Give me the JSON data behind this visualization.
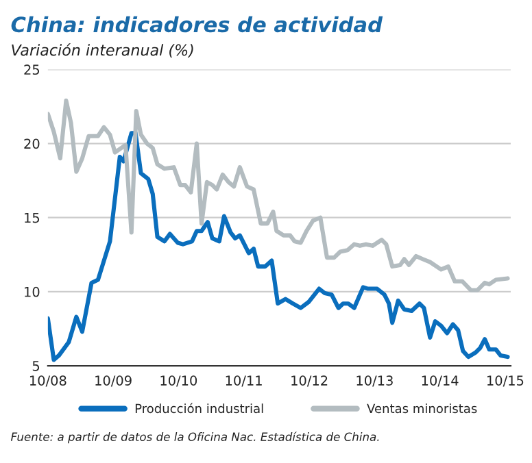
{
  "chart_data": {
    "type": "line",
    "title": "China: indicadores de actividad",
    "subtitle": "Variación interanual (%)",
    "annotations": [
      "Fuente: a partir de datos de la Oficina Nac. Estadística de China."
    ],
    "xlim": [
      "2008-10-01",
      "2015-11-01"
    ],
    "xticks": [
      {
        "value": "2008-10",
        "label": "10/08"
      },
      {
        "value": "2009-10",
        "label": "10/09"
      },
      {
        "value": "2010-10",
        "label": "10/10"
      },
      {
        "value": "2011-10",
        "label": "10/11"
      },
      {
        "value": "2012-10",
        "label": "10/12"
      },
      {
        "value": "2013-10",
        "label": "10/13"
      },
      {
        "value": "2014-10",
        "label": "10/14"
      },
      {
        "value": "2015-10",
        "label": "10/15"
      }
    ],
    "ylim": [
      5,
      25
    ],
    "yticks": [
      5,
      10,
      15,
      20,
      25
    ],
    "grid": "y",
    "legend": "bottom",
    "marker": "none",
    "line_style": "solid",
    "series": [
      {
        "name": "Producción industrial",
        "color": "#0a6ebd",
        "x": [
          "2008-10-01",
          "2008-11-03",
          "2008-12-02",
          "2009-01-26",
          "2009-03-09",
          "2009-04-11",
          "2009-06-02",
          "2009-07-08",
          "2009-09-13",
          "2009-11-07",
          "2009-11-28",
          "2010-01-11",
          "2010-02-03",
          "2010-03-05",
          "2010-04-15",
          "2010-05-10",
          "2010-06-05",
          "2010-07-15",
          "2010-08-14",
          "2010-09-27",
          "2010-10-26",
          "2010-12-16",
          "2011-01-11",
          "2011-02-07",
          "2011-03-13",
          "2011-04-08",
          "2011-05-17",
          "2011-06-13",
          "2011-07-19",
          "2011-08-14",
          "2011-09-09",
          "2011-10-04",
          "2011-10-29",
          "2011-11-25",
          "2011-12-20",
          "2012-01-29",
          "2012-03-05",
          "2012-04-08",
          "2012-05-21",
          "2012-07-01",
          "2012-08-14",
          "2012-09-27",
          "2012-11-25",
          "2012-12-27",
          "2013-02-03",
          "2013-03-13",
          "2013-04-08",
          "2013-05-07",
          "2013-06-09",
          "2013-07-29",
          "2013-08-25",
          "2013-10-15",
          "2013-11-25",
          "2013-12-20",
          "2014-01-08",
          "2014-02-10",
          "2014-03-16",
          "2014-04-26",
          "2014-06-09",
          "2014-07-04",
          "2014-08-07",
          "2014-09-05",
          "2014-10-08",
          "2014-11-10",
          "2014-12-13",
          "2015-01-11",
          "2015-02-07",
          "2015-03-09",
          "2015-04-19",
          "2015-05-14",
          "2015-06-09",
          "2015-07-04",
          "2015-08-10",
          "2015-09-05",
          "2015-10-15"
        ],
        "values": [
          8.2,
          5.4,
          5.7,
          6.6,
          8.3,
          7.3,
          10.6,
          10.8,
          13.4,
          19.1,
          18.8,
          20.7,
          20.7,
          18.0,
          17.6,
          16.6,
          13.7,
          13.4,
          13.9,
          13.3,
          13.2,
          13.4,
          14.1,
          14.1,
          14.7,
          13.6,
          13.4,
          15.1,
          14.0,
          13.6,
          13.8,
          13.2,
          12.6,
          12.9,
          11.7,
          11.7,
          12.1,
          9.2,
          9.5,
          9.2,
          8.9,
          9.3,
          10.2,
          9.9,
          9.8,
          8.9,
          9.2,
          9.2,
          8.9,
          10.3,
          10.2,
          10.2,
          9.8,
          9.2,
          7.9,
          9.4,
          8.8,
          8.7,
          9.2,
          8.9,
          6.9,
          8.0,
          7.7,
          7.2,
          7.8,
          7.4,
          6.0,
          5.6,
          5.9,
          6.2,
          6.8,
          6.1,
          6.1,
          5.7,
          5.6
        ]
      },
      {
        "name": "Ventas minoristas",
        "color": "#b3bcc0",
        "x": [
          "2008-10-01",
          "2008-11-03",
          "2008-12-09",
          "2009-01-11",
          "2009-02-07",
          "2009-03-09",
          "2009-04-11",
          "2009-05-17",
          "2009-07-08",
          "2009-08-10",
          "2009-09-13",
          "2009-10-11",
          "2009-12-09",
          "2010-01-11",
          "2010-02-07",
          "2010-03-05",
          "2010-04-08",
          "2010-05-10",
          "2010-06-05",
          "2010-07-15",
          "2010-09-05",
          "2010-10-11",
          "2010-11-07",
          "2010-12-09",
          "2011-01-11",
          "2011-02-07",
          "2011-03-09",
          "2011-04-08",
          "2011-05-03",
          "2011-06-05",
          "2011-07-08",
          "2011-08-07",
          "2011-09-09",
          "2011-10-19",
          "2011-11-25",
          "2012-01-04",
          "2012-02-10",
          "2012-03-13",
          "2012-04-01",
          "2012-05-10",
          "2012-06-16",
          "2012-07-11",
          "2012-08-14",
          "2012-09-16",
          "2012-10-22",
          "2012-12-02",
          "2013-01-08",
          "2013-02-17",
          "2013-03-23",
          "2013-05-03",
          "2013-06-09",
          "2013-07-11",
          "2013-08-14",
          "2013-09-20",
          "2013-11-10",
          "2013-12-05",
          "2014-01-08",
          "2014-02-21",
          "2014-03-16",
          "2014-04-11",
          "2014-05-21",
          "2014-06-27",
          "2014-08-07",
          "2014-10-08",
          "2014-11-17",
          "2014-12-23",
          "2015-02-03",
          "2015-03-23",
          "2015-04-29",
          "2015-06-09",
          "2015-07-04",
          "2015-08-10",
          "2015-10-15"
        ],
        "values": [
          22.0,
          20.8,
          19.0,
          22.9,
          21.4,
          18.1,
          19.0,
          20.5,
          20.5,
          21.1,
          20.6,
          19.4,
          19.9,
          14.0,
          22.2,
          20.6,
          20.0,
          19.7,
          18.6,
          18.3,
          18.4,
          17.2,
          17.2,
          16.7,
          20.0,
          14.6,
          17.4,
          17.2,
          16.9,
          17.9,
          17.4,
          17.1,
          18.4,
          17.1,
          16.9,
          14.6,
          14.6,
          15.4,
          14.1,
          13.8,
          13.8,
          13.4,
          13.3,
          14.1,
          14.8,
          15.0,
          12.3,
          12.3,
          12.7,
          12.8,
          13.2,
          13.1,
          13.2,
          13.1,
          13.5,
          13.2,
          11.7,
          11.8,
          12.2,
          11.8,
          12.4,
          12.2,
          12.0,
          11.5,
          11.7,
          10.7,
          10.7,
          10.1,
          10.1,
          10.6,
          10.5,
          10.8,
          10.9
        ]
      }
    ]
  }
}
